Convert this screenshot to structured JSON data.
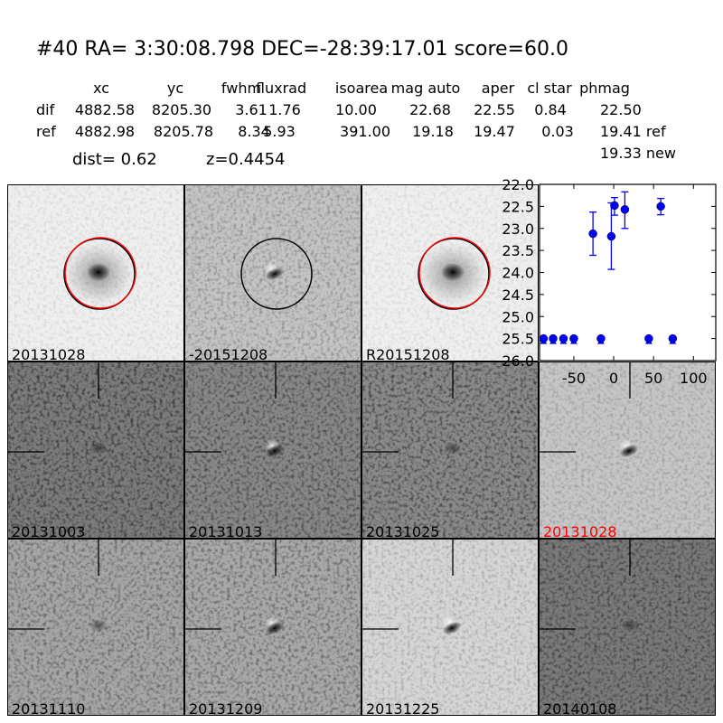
{
  "header": {
    "title": "#40   RA= 3:30:08.798 DEC=-28:39:17.01       score=60.0",
    "columns": [
      "xc",
      "yc",
      "fwhm",
      "fluxrad",
      "isoarea",
      "mag auto",
      "aper",
      "cl star",
      "phmag"
    ],
    "rows": [
      {
        "label": "dif",
        "values": [
          "4882.58",
          "8205.30",
          "3.61",
          "1.76",
          "10.00",
          "22.68",
          "22.55",
          "0.84",
          "22.50"
        ]
      },
      {
        "label": "ref",
        "values": [
          "4882.98",
          "8205.78",
          "8.34",
          "5.93",
          "391.00",
          "19.18",
          "19.47",
          "0.03",
          "19.41 ref"
        ]
      }
    ],
    "phmag_new": "19.33 new",
    "dist": "dist=  0.62",
    "z": "z=0.4454"
  },
  "panels": [
    {
      "label": "20131028",
      "bg": "#efefef",
      "noise": 0.12,
      "kind": "ref",
      "circle": true,
      "red_circle": true,
      "label_color": "#000000"
    },
    {
      "label": "-20151208",
      "bg": "#c4c4c4",
      "noise": 0.35,
      "kind": "diff",
      "circle": true,
      "red_circle": false,
      "label_color": "#000000"
    },
    {
      "label": "R20151208",
      "bg": "#efefef",
      "noise": 0.12,
      "kind": "ref",
      "circle": true,
      "red_circle": true,
      "label_color": "#000000"
    },
    {
      "label": "20131003",
      "bg": "#7c7c7c",
      "noise": 0.7,
      "kind": "faint",
      "crosshair": true,
      "label_color": "#000000"
    },
    {
      "label": "20131013",
      "bg": "#888888",
      "noise": 0.6,
      "kind": "diff",
      "crosshair": true,
      "label_color": "#000000"
    },
    {
      "label": "20131025",
      "bg": "#8a8a8a",
      "noise": 0.65,
      "kind": "faint",
      "crosshair": true,
      "label_color": "#000000"
    },
    {
      "label": "20131028",
      "bg": "#c6c6c6",
      "noise": 0.25,
      "kind": "diff",
      "crosshair": true,
      "label_color": "#ff0000"
    },
    {
      "label": "20131110",
      "bg": "#a6a6a6",
      "noise": 0.5,
      "kind": "faint",
      "crosshair": true,
      "label_color": "#000000"
    },
    {
      "label": "20131209",
      "bg": "#a9a9a9",
      "noise": 0.5,
      "kind": "diff",
      "crosshair": true,
      "label_color": "#000000"
    },
    {
      "label": "20131225",
      "bg": "#d6d6d6",
      "noise": 0.25,
      "kind": "diff",
      "crosshair": true,
      "label_color": "#000000"
    },
    {
      "label": "20140108",
      "bg": "#7a7a7a",
      "noise": 0.6,
      "kind": "faint",
      "crosshair": true,
      "label_color": "#000000"
    }
  ],
  "chart_data": {
    "type": "scatter",
    "xlim": [
      -93,
      128
    ],
    "ylim": [
      26.0,
      22.0
    ],
    "y_inverted": true,
    "xticks": [
      "-50",
      "0",
      "50",
      "100"
    ],
    "xtick_values": [
      -50,
      0,
      50,
      100
    ],
    "yticks": [
      "22.0",
      "22.5",
      "23.0",
      "23.5",
      "24.0",
      "24.5",
      "25.0",
      "25.5",
      "26.0"
    ],
    "ytick_values": [
      22.0,
      22.5,
      23.0,
      23.5,
      24.0,
      24.5,
      25.0,
      25.5,
      26.0
    ],
    "color": "#0000ff",
    "detections": [
      {
        "x": -26,
        "y": 23.12,
        "err_lo": 22.63,
        "err_hi": 23.61
      },
      {
        "x": -3,
        "y": 23.18,
        "err_lo": 22.42,
        "err_hi": 23.93
      },
      {
        "x": 1,
        "y": 22.48,
        "err_lo": 22.3,
        "err_hi": 22.7
      },
      {
        "x": 14,
        "y": 22.57,
        "err_lo": 22.17,
        "err_hi": 23.0
      },
      {
        "x": 59,
        "y": 22.5,
        "err_lo": 22.32,
        "err_hi": 22.69
      }
    ],
    "upper_limits": [
      {
        "x": -88,
        "y": 25.5
      },
      {
        "x": -76,
        "y": 25.5
      },
      {
        "x": -63,
        "y": 25.5
      },
      {
        "x": -50,
        "y": 25.5
      },
      {
        "x": -16,
        "y": 25.5
      },
      {
        "x": 44,
        "y": 25.5
      },
      {
        "x": 74,
        "y": 25.5
      }
    ]
  }
}
